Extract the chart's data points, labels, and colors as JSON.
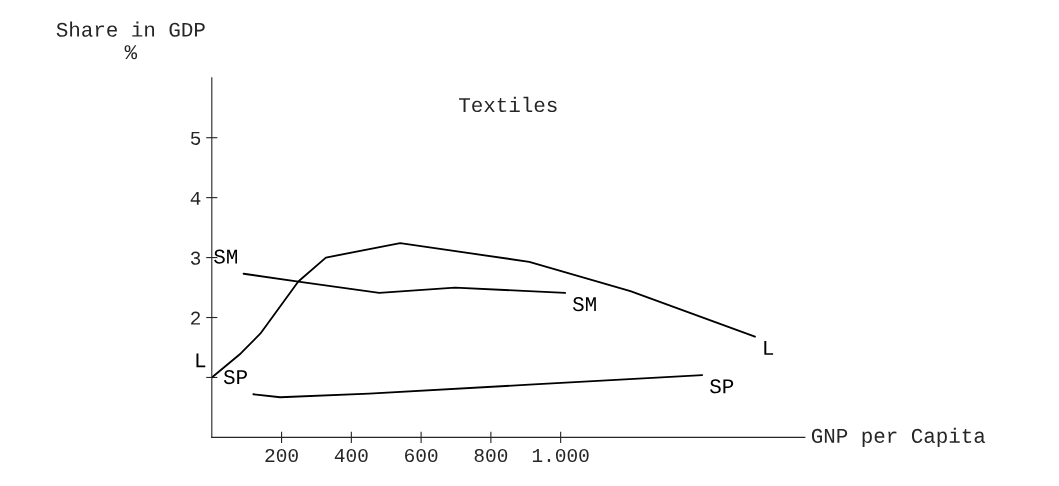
{
  "chart_data": {
    "type": "line",
    "title": "Textiles",
    "xlabel": "GNP per Capita",
    "ylabel": "Share in GDP\n%",
    "xlim": [
      0,
      1700
    ],
    "ylim": [
      0,
      6
    ],
    "xticks": [
      200,
      400,
      600,
      800,
      {
        "value": 1000,
        "label": "1.000"
      }
    ],
    "yticks": [
      {
        "value": 1,
        "label": null
      },
      2,
      3,
      4,
      5
    ],
    "grid": false,
    "legend": false,
    "marker": "none",
    "line_style": "solid",
    "series": [
      {
        "name": "L",
        "color": "#000000",
        "x": [
          0,
          83,
          139,
          248,
          327,
          540,
          910,
          1200,
          1557
        ],
        "values": [
          1.0,
          1.4,
          1.73,
          2.6,
          3.0,
          3.24,
          2.93,
          2.44,
          1.68
        ]
      },
      {
        "name": "SM",
        "color": "#000000",
        "x": [
          91,
          248,
          480,
          697,
          1013
        ],
        "values": [
          2.73,
          2.6,
          2.41,
          2.5,
          2.41
        ]
      },
      {
        "name": "SP",
        "color": "#000000",
        "x": [
          119,
          196,
          451,
          910,
          1406
        ],
        "values": [
          0.72,
          0.67,
          0.73,
          0.88,
          1.04
        ]
      }
    ]
  }
}
